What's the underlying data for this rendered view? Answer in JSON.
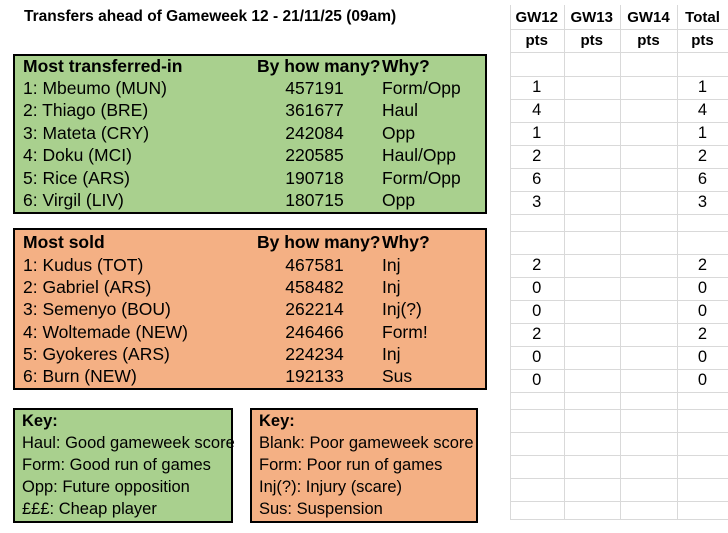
{
  "title": "Transfers ahead of Gameweek 12 - 21/11/25 (09am)",
  "colors": {
    "green": "#A9D08E",
    "orange": "#F4B084",
    "gridline": "#D9D9D9",
    "border": "#000000"
  },
  "points_grid": {
    "columns": [
      {
        "label": "GW12",
        "sub": "pts"
      },
      {
        "label": "GW13",
        "sub": "pts"
      },
      {
        "label": "GW14",
        "sub": "pts"
      },
      {
        "label": "Total",
        "sub": "pts"
      }
    ],
    "transferred_in_rows": [
      {
        "gw12": "1",
        "gw13": "",
        "gw14": "",
        "total": "1"
      },
      {
        "gw12": "4",
        "gw13": "",
        "gw14": "",
        "total": "4"
      },
      {
        "gw12": "1",
        "gw13": "",
        "gw14": "",
        "total": "1"
      },
      {
        "gw12": "2",
        "gw13": "",
        "gw14": "",
        "total": "2"
      },
      {
        "gw12": "6",
        "gw13": "",
        "gw14": "",
        "total": "6"
      },
      {
        "gw12": "3",
        "gw13": "",
        "gw14": "",
        "total": "3"
      }
    ],
    "sold_rows": [
      {
        "gw12": "2",
        "gw13": "",
        "gw14": "",
        "total": "2"
      },
      {
        "gw12": "0",
        "gw13": "",
        "gw14": "",
        "total": "0"
      },
      {
        "gw12": "0",
        "gw13": "",
        "gw14": "",
        "total": "0"
      },
      {
        "gw12": "2",
        "gw13": "",
        "gw14": "",
        "total": "2"
      },
      {
        "gw12": "0",
        "gw13": "",
        "gw14": "",
        "total": "0"
      },
      {
        "gw12": "0",
        "gw13": "",
        "gw14": "",
        "total": "0"
      }
    ]
  },
  "transferred_in_table": {
    "headers": [
      "Most transferred-in",
      "By how many?",
      "Why?"
    ],
    "rows": [
      {
        "player": "1: Mbeumo (MUN)",
        "count": "457191",
        "why": "Form/Opp"
      },
      {
        "player": "2: Thiago (BRE)",
        "count": "361677",
        "why": "Haul"
      },
      {
        "player": "3: Mateta (CRY)",
        "count": "242084",
        "why": "Opp"
      },
      {
        "player": "4: Doku (MCI)",
        "count": "220585",
        "why": "Haul/Opp"
      },
      {
        "player": "5: Rice (ARS)",
        "count": "190718",
        "why": "Form/Opp"
      },
      {
        "player": "6: Virgil (LIV)",
        "count": "180715",
        "why": "Opp"
      }
    ]
  },
  "sold_table": {
    "headers": [
      "Most sold",
      "By how many?",
      "Why?"
    ],
    "rows": [
      {
        "player": "1: Kudus (TOT)",
        "count": "467581",
        "why": "Inj"
      },
      {
        "player": "2: Gabriel (ARS)",
        "count": "458482",
        "why": "Inj"
      },
      {
        "player": "3: Semenyo (BOU)",
        "count": "262214",
        "why": "Inj(?)"
      },
      {
        "player": "4: Woltemade (NEW)",
        "count": "246466",
        "why": "Form!"
      },
      {
        "player": "5: Gyokeres (ARS)",
        "count": "224234",
        "why": "Inj"
      },
      {
        "player": "6: Burn (NEW)",
        "count": "192133",
        "why": "Sus"
      }
    ]
  },
  "keys": {
    "green": {
      "title": "Key:",
      "lines": [
        "Haul: Good gameweek score",
        "Form: Good run of games",
        "Opp: Future opposition",
        "£££: Cheap player"
      ]
    },
    "orange": {
      "title": "Key:",
      "lines": [
        "Blank: Poor gameweek score",
        "Form: Poor run of games",
        "Inj(?): Injury (scare)",
        "Sus: Suspension"
      ]
    }
  }
}
